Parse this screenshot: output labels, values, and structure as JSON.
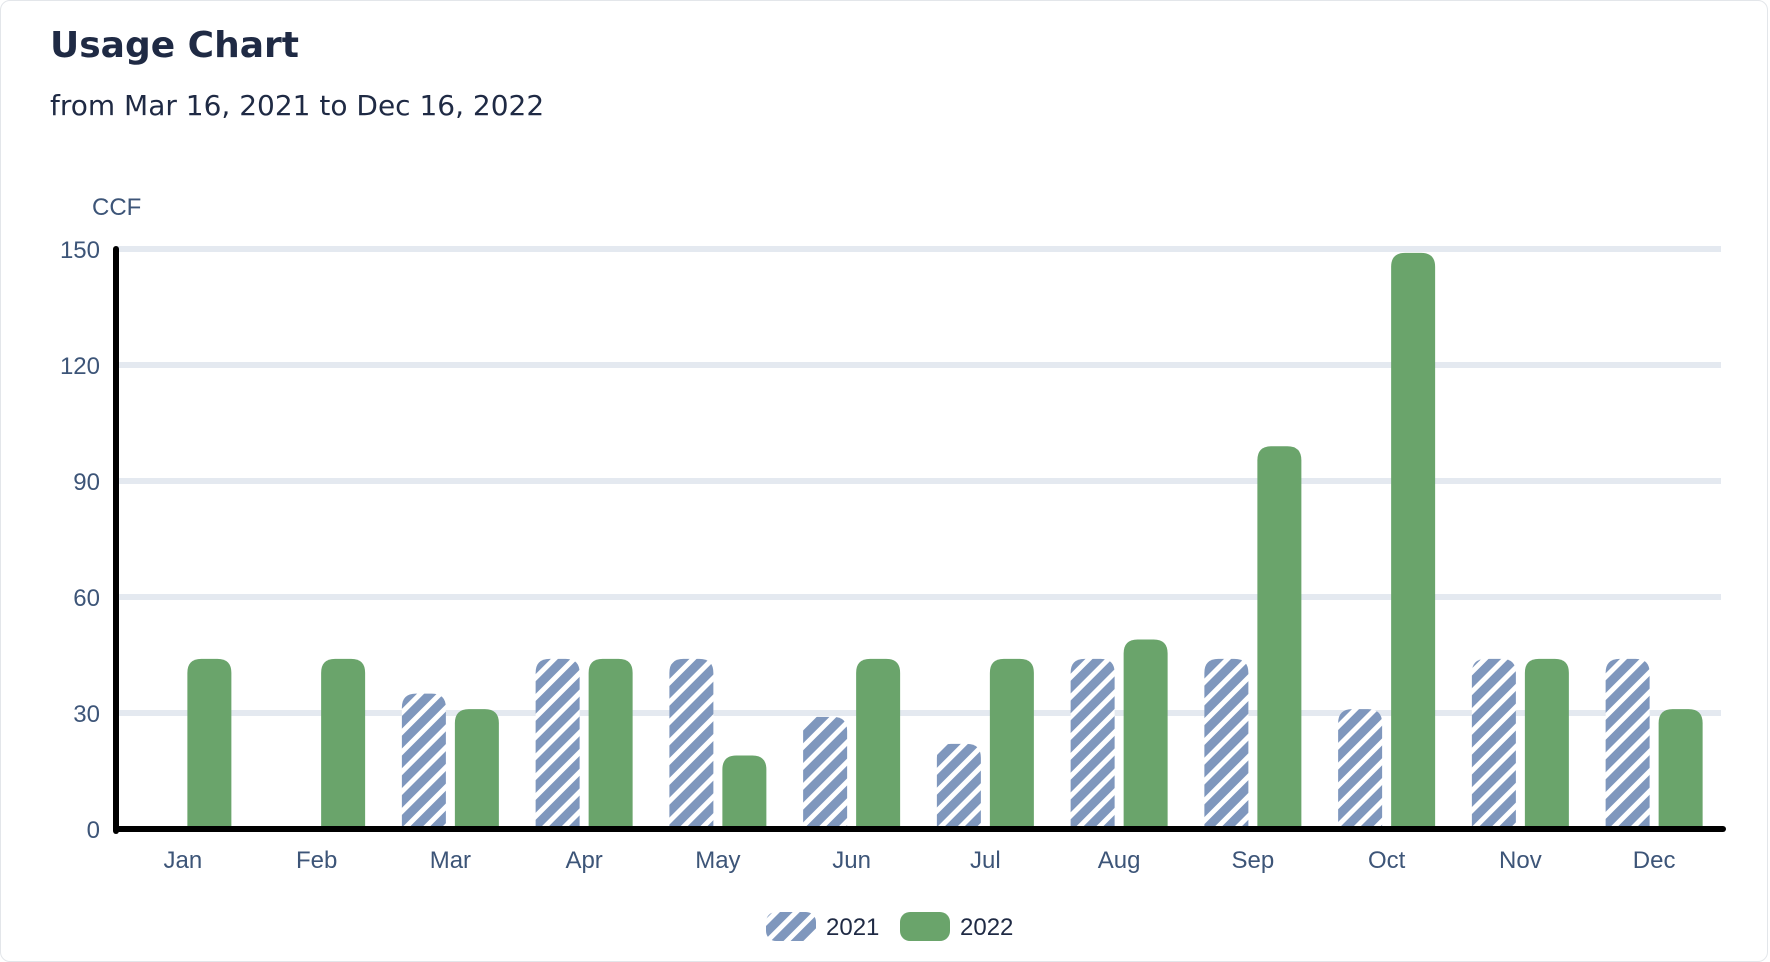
{
  "header": {
    "title": "Usage Chart",
    "subtitle": "from Mar 16, 2021 to Dec 16, 2022"
  },
  "colors": {
    "series_2021": "#7f97bd",
    "series_2022": "#6aa46b",
    "grid": "#e4e9f0",
    "axis": "#000000"
  },
  "chart_data": {
    "type": "bar",
    "ylabel": "CCF",
    "xlabel": "",
    "ylim": [
      0,
      150
    ],
    "yticks": [
      0,
      30,
      60,
      90,
      120,
      150
    ],
    "grid": true,
    "legend_position": "bottom-center",
    "categories": [
      "Jan",
      "Feb",
      "Mar",
      "Apr",
      "May",
      "Jun",
      "Jul",
      "Aug",
      "Sep",
      "Oct",
      "Nov",
      "Dec"
    ],
    "series": [
      {
        "name": "2021",
        "pattern": "diagonal-stripes",
        "values": [
          null,
          null,
          35,
          44,
          44,
          29,
          22,
          44,
          44,
          31,
          44,
          44
        ]
      },
      {
        "name": "2022",
        "pattern": "solid",
        "values": [
          44,
          44,
          31,
          44,
          19,
          44,
          44,
          49,
          99,
          149,
          44,
          31
        ]
      }
    ]
  }
}
